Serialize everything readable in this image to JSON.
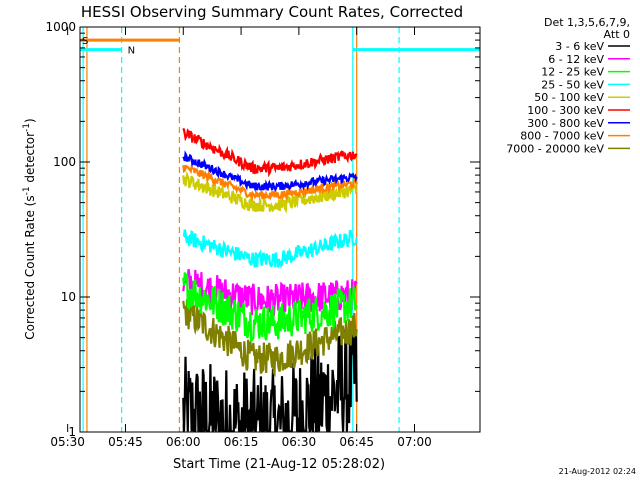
{
  "chart_data": {
    "type": "line",
    "title": "HESSI Observing Summary Count Rates, Corrected",
    "xlabel": "Start Time (21-Aug-12 05:28:02)",
    "ylabel_main": "Corrected Count Rate (s",
    "ylabel_sup1": "-1",
    "ylabel_mid": " detector",
    "ylabel_sup2": "-1",
    "ylabel_end": ")",
    "yscale": "log",
    "ylim": [
      1,
      1000
    ],
    "xlim_minutes": [
      5.2,
      109
    ],
    "x_ticks": [
      {
        "label": "05:30",
        "minute": 2
      },
      {
        "label": "05:45",
        "minute": 17
      },
      {
        "label": "06:00",
        "minute": 32
      },
      {
        "label": "06:15",
        "minute": 47
      },
      {
        "label": "06:30",
        "minute": 62
      },
      {
        "label": "06:45",
        "minute": 77
      },
      {
        "label": "07:00",
        "minute": 92
      }
    ],
    "y_ticks": [
      {
        "label": "1",
        "value": 1
      },
      {
        "label": "10",
        "value": 10
      },
      {
        "label": "100",
        "value": 100
      },
      {
        "label": "1000",
        "value": 1000
      }
    ],
    "legend": {
      "header1": "Det 1,3,5,6,7,9,",
      "header2": "Att 0",
      "position": "right"
    },
    "series": [
      {
        "name": "3 - 6 keV",
        "color": "#000000",
        "start": 1.3,
        "mid": 1.05,
        "end": 2.5,
        "noise": 0.45
      },
      {
        "name": "6 - 12 keV",
        "color": "#ff00ff",
        "start": 13,
        "mid": 9.5,
        "end": 10.5,
        "noise": 0.12
      },
      {
        "name": "12 - 25 keV",
        "color": "#00ff00",
        "start": 12,
        "mid": 6.5,
        "end": 9,
        "noise": 0.14
      },
      {
        "name": "25 - 50 keV",
        "color": "#00ffff",
        "start": 28,
        "mid": 19,
        "end": 28,
        "noise": 0.06
      },
      {
        "name": "50 - 100 keV",
        "color": "#cccc00",
        "start": 75,
        "mid": 48,
        "end": 63,
        "noise": 0.05
      },
      {
        "name": "100 - 300 keV",
        "color": "#ff0000",
        "start": 165,
        "mid": 90,
        "end": 115,
        "noise": 0.04
      },
      {
        "name": "300 - 800 keV",
        "color": "#0000ff",
        "start": 110,
        "mid": 66,
        "end": 78,
        "noise": 0.03
      },
      {
        "name": "800 - 7000 keV",
        "color": "#ff8000",
        "start": 92,
        "mid": 57,
        "end": 70,
        "noise": 0.03
      },
      {
        "name": "7000 - 20000 keV",
        "color": "#808000",
        "start": 8,
        "mid": 3.5,
        "end": 6,
        "noise": 0.12
      }
    ],
    "flags": [
      {
        "label": "S",
        "color": "#ff8000",
        "x0": 5.2,
        "x1": 31,
        "level": 800
      },
      {
        "label": "N",
        "color": "#00ffff",
        "x0": 5.2,
        "x1": 16,
        "level": 680
      },
      {
        "label": "",
        "color": "#00ffff",
        "x0": 76,
        "x1": 109,
        "level": 680
      }
    ],
    "vlines": [
      {
        "minute": 7,
        "color": "#ff8000",
        "dash": false
      },
      {
        "minute": 6,
        "color": "#00ffff",
        "dash": false
      },
      {
        "minute": 16,
        "color": "#00ffff",
        "dash": true
      },
      {
        "minute": 31,
        "color": "#ff8000",
        "dash": true
      },
      {
        "minute": 76,
        "color": "#00ffff",
        "dash": false
      },
      {
        "minute": 77,
        "color": "#ff8000",
        "dash": false
      },
      {
        "minute": 88,
        "color": "#00ffff",
        "dash": true
      }
    ],
    "data_range_minutes": [
      32,
      77
    ]
  },
  "timestamp": "21-Aug-2012 02:24"
}
